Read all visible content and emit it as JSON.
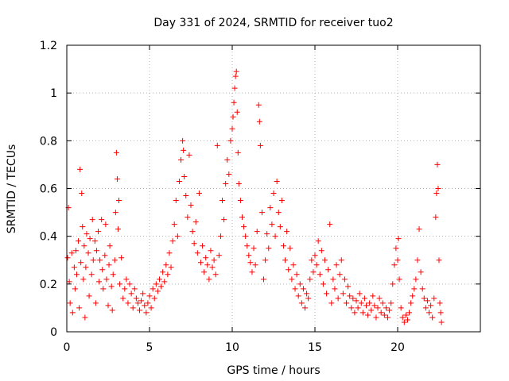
{
  "chart_data": {
    "type": "scatter",
    "title": "Day 331 of 2024, SRMTID for receiver tuo2",
    "xlabel": "GPS time / hours",
    "ylabel": "SRMTID / TECUs",
    "xlim": [
      0,
      25
    ],
    "ylim": [
      0,
      1.2
    ],
    "xticks": [
      0,
      5,
      10,
      15,
      20
    ],
    "yticks": [
      0,
      0.2,
      0.4,
      0.6,
      0.8,
      1,
      1.2
    ],
    "xtick_labels": [
      "0",
      "5",
      "10",
      "15",
      "20"
    ],
    "ytick_labels": [
      "0",
      "0.2",
      "0.4",
      "0.6",
      "0.8",
      "1",
      "1.2"
    ],
    "grid": true,
    "marker": "+",
    "color": "#ff0000",
    "series": [
      {
        "name": "SRMTID",
        "points": [
          [
            0.05,
            0.31
          ],
          [
            0.1,
            0.52
          ],
          [
            0.15,
            0.21
          ],
          [
            0.2,
            0.12
          ],
          [
            0.3,
            0.33
          ],
          [
            0.35,
            0.08
          ],
          [
            0.45,
            0.27
          ],
          [
            0.5,
            0.18
          ],
          [
            0.55,
            0.34
          ],
          [
            0.6,
            0.24
          ],
          [
            0.7,
            0.38
          ],
          [
            0.75,
            0.1
          ],
          [
            0.8,
            0.68
          ],
          [
            0.85,
            0.29
          ],
          [
            0.9,
            0.58
          ],
          [
            0.95,
            0.44
          ],
          [
            1.0,
            0.22
          ],
          [
            1.05,
            0.36
          ],
          [
            1.1,
            0.06
          ],
          [
            1.15,
            0.27
          ],
          [
            1.2,
            0.41
          ],
          [
            1.3,
            0.33
          ],
          [
            1.35,
            0.15
          ],
          [
            1.4,
            0.39
          ],
          [
            1.5,
            0.24
          ],
          [
            1.55,
            0.47
          ],
          [
            1.6,
            0.3
          ],
          [
            1.7,
            0.38
          ],
          [
            1.75,
            0.12
          ],
          [
            1.8,
            0.34
          ],
          [
            1.9,
            0.42
          ],
          [
            1.95,
            0.21
          ],
          [
            2.0,
            0.3
          ],
          [
            2.1,
            0.47
          ],
          [
            2.15,
            0.26
          ],
          [
            2.2,
            0.18
          ],
          [
            2.3,
            0.32
          ],
          [
            2.35,
            0.45
          ],
          [
            2.4,
            0.22
          ],
          [
            2.5,
            0.11
          ],
          [
            2.55,
            0.28
          ],
          [
            2.6,
            0.36
          ],
          [
            2.7,
            0.19
          ],
          [
            2.75,
            0.09
          ],
          [
            2.8,
            0.24
          ],
          [
            2.9,
            0.3
          ],
          [
            2.95,
            0.5
          ],
          [
            3.0,
            0.75
          ],
          [
            3.05,
            0.64
          ],
          [
            3.1,
            0.43
          ],
          [
            3.15,
            0.55
          ],
          [
            3.2,
            0.2
          ],
          [
            3.3,
            0.31
          ],
          [
            3.4,
            0.14
          ],
          [
            3.5,
            0.18
          ],
          [
            3.6,
            0.22
          ],
          [
            3.7,
            0.12
          ],
          [
            3.8,
            0.2
          ],
          [
            3.9,
            0.16
          ],
          [
            4.0,
            0.1
          ],
          [
            4.1,
            0.18
          ],
          [
            4.2,
            0.14
          ],
          [
            4.3,
            0.12
          ],
          [
            4.4,
            0.09
          ],
          [
            4.5,
            0.13
          ],
          [
            4.6,
            0.16
          ],
          [
            4.7,
            0.11
          ],
          [
            4.8,
            0.08
          ],
          [
            4.9,
            0.12
          ],
          [
            5.0,
            0.15
          ],
          [
            5.1,
            0.1
          ],
          [
            5.2,
            0.18
          ],
          [
            5.3,
            0.14
          ],
          [
            5.4,
            0.2
          ],
          [
            5.5,
            0.17
          ],
          [
            5.6,
            0.22
          ],
          [
            5.7,
            0.19
          ],
          [
            5.8,
            0.25
          ],
          [
            5.9,
            0.21
          ],
          [
            6.0,
            0.28
          ],
          [
            6.1,
            0.24
          ],
          [
            6.2,
            0.33
          ],
          [
            6.3,
            0.27
          ],
          [
            6.4,
            0.38
          ],
          [
            6.5,
            0.45
          ],
          [
            6.6,
            0.55
          ],
          [
            6.7,
            0.4
          ],
          [
            6.8,
            0.63
          ],
          [
            6.9,
            0.72
          ],
          [
            7.0,
            0.8
          ],
          [
            7.05,
            0.76
          ],
          [
            7.1,
            0.65
          ],
          [
            7.2,
            0.57
          ],
          [
            7.3,
            0.48
          ],
          [
            7.4,
            0.74
          ],
          [
            7.5,
            0.53
          ],
          [
            7.6,
            0.42
          ],
          [
            7.7,
            0.37
          ],
          [
            7.8,
            0.46
          ],
          [
            7.9,
            0.33
          ],
          [
            8.0,
            0.58
          ],
          [
            8.1,
            0.29
          ],
          [
            8.2,
            0.36
          ],
          [
            8.3,
            0.25
          ],
          [
            8.4,
            0.31
          ],
          [
            8.5,
            0.28
          ],
          [
            8.6,
            0.22
          ],
          [
            8.7,
            0.34
          ],
          [
            8.8,
            0.27
          ],
          [
            8.9,
            0.3
          ],
          [
            9.0,
            0.24
          ],
          [
            9.1,
            0.78
          ],
          [
            9.2,
            0.32
          ],
          [
            9.3,
            0.4
          ],
          [
            9.4,
            0.55
          ],
          [
            9.5,
            0.47
          ],
          [
            9.6,
            0.62
          ],
          [
            9.7,
            0.72
          ],
          [
            9.8,
            0.66
          ],
          [
            9.9,
            0.8
          ],
          [
            10.0,
            0.85
          ],
          [
            10.05,
            0.9
          ],
          [
            10.1,
            0.96
          ],
          [
            10.15,
            1.02
          ],
          [
            10.2,
            1.07
          ],
          [
            10.25,
            1.09
          ],
          [
            10.3,
            0.92
          ],
          [
            10.35,
            0.75
          ],
          [
            10.4,
            0.62
          ],
          [
            10.5,
            0.55
          ],
          [
            10.6,
            0.48
          ],
          [
            10.7,
            0.44
          ],
          [
            10.8,
            0.4
          ],
          [
            10.9,
            0.36
          ],
          [
            11.0,
            0.32
          ],
          [
            11.1,
            0.29
          ],
          [
            11.2,
            0.25
          ],
          [
            11.3,
            0.35
          ],
          [
            11.4,
            0.28
          ],
          [
            11.5,
            0.42
          ],
          [
            11.6,
            0.95
          ],
          [
            11.65,
            0.88
          ],
          [
            11.7,
            0.78
          ],
          [
            11.8,
            0.5
          ],
          [
            11.9,
            0.22
          ],
          [
            12.0,
            0.3
          ],
          [
            12.1,
            0.41
          ],
          [
            12.2,
            0.35
          ],
          [
            12.3,
            0.52
          ],
          [
            12.4,
            0.45
          ],
          [
            12.5,
            0.58
          ],
          [
            12.6,
            0.4
          ],
          [
            12.7,
            0.63
          ],
          [
            12.8,
            0.5
          ],
          [
            12.9,
            0.44
          ],
          [
            13.0,
            0.55
          ],
          [
            13.1,
            0.36
          ],
          [
            13.2,
            0.3
          ],
          [
            13.3,
            0.42
          ],
          [
            13.4,
            0.26
          ],
          [
            13.5,
            0.35
          ],
          [
            13.6,
            0.22
          ],
          [
            13.7,
            0.28
          ],
          [
            13.8,
            0.18
          ],
          [
            13.9,
            0.24
          ],
          [
            14.0,
            0.15
          ],
          [
            14.1,
            0.2
          ],
          [
            14.2,
            0.12
          ],
          [
            14.3,
            0.18
          ],
          [
            14.4,
            0.1
          ],
          [
            14.5,
            0.16
          ],
          [
            14.6,
            0.14
          ],
          [
            14.7,
            0.22
          ],
          [
            14.8,
            0.3
          ],
          [
            14.9,
            0.25
          ],
          [
            15.0,
            0.32
          ],
          [
            15.1,
            0.28
          ],
          [
            15.2,
            0.38
          ],
          [
            15.3,
            0.24
          ],
          [
            15.4,
            0.34
          ],
          [
            15.5,
            0.2
          ],
          [
            15.6,
            0.3
          ],
          [
            15.7,
            0.16
          ],
          [
            15.8,
            0.26
          ],
          [
            15.9,
            0.45
          ],
          [
            16.0,
            0.12
          ],
          [
            16.1,
            0.22
          ],
          [
            16.2,
            0.18
          ],
          [
            16.3,
            0.28
          ],
          [
            16.4,
            0.14
          ],
          [
            16.5,
            0.24
          ],
          [
            16.6,
            0.3
          ],
          [
            16.7,
            0.16
          ],
          [
            16.8,
            0.22
          ],
          [
            16.9,
            0.12
          ],
          [
            17.0,
            0.19
          ],
          [
            17.1,
            0.15
          ],
          [
            17.2,
            0.1
          ],
          [
            17.3,
            0.14
          ],
          [
            17.4,
            0.08
          ],
          [
            17.5,
            0.13
          ],
          [
            17.6,
            0.1
          ],
          [
            17.7,
            0.16
          ],
          [
            17.8,
            0.12
          ],
          [
            17.9,
            0.08
          ],
          [
            18.0,
            0.14
          ],
          [
            18.1,
            0.11
          ],
          [
            18.2,
            0.07
          ],
          [
            18.3,
            0.12
          ],
          [
            18.4,
            0.09
          ],
          [
            18.5,
            0.15
          ],
          [
            18.6,
            0.11
          ],
          [
            18.7,
            0.06
          ],
          [
            18.8,
            0.1
          ],
          [
            18.9,
            0.14
          ],
          [
            19.0,
            0.08
          ],
          [
            19.1,
            0.12
          ],
          [
            19.2,
            0.07
          ],
          [
            19.3,
            0.1
          ],
          [
            19.4,
            0.06
          ],
          [
            19.5,
            0.09
          ],
          [
            19.6,
            0.12
          ],
          [
            19.7,
            0.2
          ],
          [
            19.8,
            0.28
          ],
          [
            19.9,
            0.35
          ],
          [
            20.0,
            0.3
          ],
          [
            20.05,
            0.39
          ],
          [
            20.1,
            0.22
          ],
          [
            20.2,
            0.1
          ],
          [
            20.3,
            0.06
          ],
          [
            20.4,
            0.04
          ],
          [
            20.5,
            0.07
          ],
          [
            20.6,
            0.05
          ],
          [
            20.7,
            0.08
          ],
          [
            20.8,
            0.12
          ],
          [
            20.9,
            0.15
          ],
          [
            21.0,
            0.18
          ],
          [
            21.1,
            0.22
          ],
          [
            21.2,
            0.3
          ],
          [
            21.3,
            0.43
          ],
          [
            21.4,
            0.25
          ],
          [
            21.5,
            0.18
          ],
          [
            21.6,
            0.14
          ],
          [
            21.7,
            0.1
          ],
          [
            21.8,
            0.13
          ],
          [
            21.9,
            0.08
          ],
          [
            22.0,
            0.11
          ],
          [
            22.1,
            0.06
          ],
          [
            22.2,
            0.14
          ],
          [
            22.3,
            0.48
          ],
          [
            22.35,
            0.58
          ],
          [
            22.4,
            0.7
          ],
          [
            22.45,
            0.6
          ],
          [
            22.5,
            0.3
          ],
          [
            22.55,
            0.12
          ],
          [
            22.6,
            0.08
          ],
          [
            22.65,
            0.04
          ]
        ]
      }
    ]
  }
}
